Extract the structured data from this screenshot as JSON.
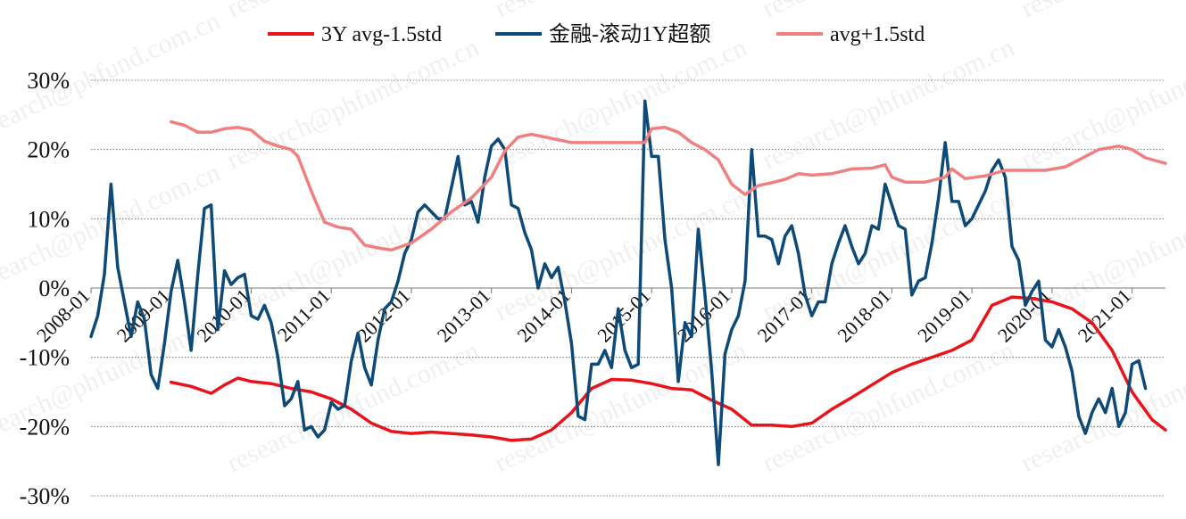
{
  "watermark": "research@phfund.com.cn",
  "chart_data": {
    "type": "line",
    "title": "",
    "xlabel": "",
    "ylabel": "",
    "ylim": [
      -0.3,
      0.3
    ],
    "y_ticks": [
      "30%",
      "20%",
      "10%",
      "0%",
      "-10%",
      "-20%",
      "-30%"
    ],
    "y_tick_values": [
      0.3,
      0.2,
      0.1,
      0.0,
      -0.1,
      -0.2,
      -0.3
    ],
    "grid": "horizontal dotted",
    "legend_position": "top",
    "x_ticks": [
      "2008-01",
      "2009-01",
      "2010-01",
      "2011-01",
      "2012-01",
      "2013-01",
      "2014-01",
      "2015-01",
      "2016-01",
      "2017-01",
      "2018-01",
      "2019-01",
      "2020-01",
      "2021-01"
    ],
    "x_range": [
      "2008-01",
      "2021-06"
    ],
    "series": [
      {
        "name": "3Y avg-1.5std",
        "color": "#e8141b",
        "points": [
          [
            "2009-01",
            -0.136
          ],
          [
            "2009-04",
            -0.142
          ],
          [
            "2009-07",
            -0.152
          ],
          [
            "2009-09",
            -0.14
          ],
          [
            "2009-11",
            -0.13
          ],
          [
            "2010-01",
            -0.135
          ],
          [
            "2010-04",
            -0.138
          ],
          [
            "2010-07",
            -0.145
          ],
          [
            "2010-10",
            -0.15
          ],
          [
            "2011-01",
            -0.16
          ],
          [
            "2011-04",
            -0.175
          ],
          [
            "2011-07",
            -0.195
          ],
          [
            "2011-10",
            -0.207
          ],
          [
            "2012-01",
            -0.21
          ],
          [
            "2012-04",
            -0.208
          ],
          [
            "2012-07",
            -0.21
          ],
          [
            "2012-10",
            -0.212
          ],
          [
            "2013-01",
            -0.215
          ],
          [
            "2013-04",
            -0.22
          ],
          [
            "2013-07",
            -0.218
          ],
          [
            "2013-10",
            -0.205
          ],
          [
            "2014-01",
            -0.18
          ],
          [
            "2014-04",
            -0.145
          ],
          [
            "2014-07",
            -0.132
          ],
          [
            "2014-10",
            -0.133
          ],
          [
            "2015-01",
            -0.138
          ],
          [
            "2015-04",
            -0.145
          ],
          [
            "2015-07",
            -0.147
          ],
          [
            "2015-10",
            -0.162
          ],
          [
            "2016-01",
            -0.175
          ],
          [
            "2016-04",
            -0.198
          ],
          [
            "2016-07",
            -0.198
          ],
          [
            "2016-10",
            -0.2
          ],
          [
            "2017-01",
            -0.195
          ],
          [
            "2017-04",
            -0.175
          ],
          [
            "2017-07",
            -0.158
          ],
          [
            "2017-10",
            -0.14
          ],
          [
            "2018-01",
            -0.122
          ],
          [
            "2018-04",
            -0.11
          ],
          [
            "2018-07",
            -0.1
          ],
          [
            "2018-10",
            -0.09
          ],
          [
            "2019-01",
            -0.075
          ],
          [
            "2019-04",
            -0.025
          ],
          [
            "2019-07",
            -0.013
          ],
          [
            "2019-10",
            -0.015
          ],
          [
            "2020-01",
            -0.02
          ],
          [
            "2020-04",
            -0.03
          ],
          [
            "2020-07",
            -0.05
          ],
          [
            "2020-10",
            -0.09
          ],
          [
            "2021-01",
            -0.15
          ],
          [
            "2021-04",
            -0.19
          ],
          [
            "2021-06",
            -0.205
          ]
        ]
      },
      {
        "name": "金融-滚动1Y超额",
        "color": "#0d4a78",
        "points": [
          [
            "2008-01",
            -0.07
          ],
          [
            "2008-02",
            -0.04
          ],
          [
            "2008-03",
            0.02
          ],
          [
            "2008-04",
            0.15
          ],
          [
            "2008-05",
            0.03
          ],
          [
            "2008-06",
            -0.02
          ],
          [
            "2008-07",
            -0.07
          ],
          [
            "2008-08",
            -0.02
          ],
          [
            "2008-09",
            -0.045
          ],
          [
            "2008-10",
            -0.125
          ],
          [
            "2008-11",
            -0.145
          ],
          [
            "2008-12",
            -0.08
          ],
          [
            "2009-01",
            -0.005
          ],
          [
            "2009-02",
            0.04
          ],
          [
            "2009-03",
            -0.02
          ],
          [
            "2009-04",
            -0.09
          ],
          [
            "2009-05",
            0.02
          ],
          [
            "2009-06",
            0.115
          ],
          [
            "2009-07",
            0.12
          ],
          [
            "2009-08",
            -0.06
          ],
          [
            "2009-09",
            0.025
          ],
          [
            "2009-10",
            0.005
          ],
          [
            "2009-11",
            0.015
          ],
          [
            "2009-12",
            0.02
          ],
          [
            "2010-01",
            -0.04
          ],
          [
            "2010-02",
            -0.045
          ],
          [
            "2010-03",
            -0.025
          ],
          [
            "2010-04",
            -0.05
          ],
          [
            "2010-05",
            -0.1
          ],
          [
            "2010-06",
            -0.17
          ],
          [
            "2010-07",
            -0.16
          ],
          [
            "2010-08",
            -0.135
          ],
          [
            "2010-09",
            -0.205
          ],
          [
            "2010-10",
            -0.2
          ],
          [
            "2010-11",
            -0.215
          ],
          [
            "2010-12",
            -0.205
          ],
          [
            "2011-01",
            -0.165
          ],
          [
            "2011-02",
            -0.175
          ],
          [
            "2011-03",
            -0.17
          ],
          [
            "2011-04",
            -0.105
          ],
          [
            "2011-05",
            -0.065
          ],
          [
            "2011-06",
            -0.115
          ],
          [
            "2011-07",
            -0.14
          ],
          [
            "2011-08",
            -0.075
          ],
          [
            "2011-09",
            -0.03
          ],
          [
            "2011-10",
            -0.02
          ],
          [
            "2011-11",
            0.01
          ],
          [
            "2011-12",
            0.05
          ],
          [
            "2012-01",
            0.07
          ],
          [
            "2012-02",
            0.11
          ],
          [
            "2012-03",
            0.12
          ],
          [
            "2012-04",
            0.11
          ],
          [
            "2012-05",
            0.1
          ],
          [
            "2012-06",
            0.1
          ],
          [
            "2012-07",
            0.145
          ],
          [
            "2012-08",
            0.19
          ],
          [
            "2012-09",
            0.12
          ],
          [
            "2012-10",
            0.125
          ],
          [
            "2012-11",
            0.095
          ],
          [
            "2012-12",
            0.16
          ],
          [
            "2013-01",
            0.205
          ],
          [
            "2013-02",
            0.215
          ],
          [
            "2013-03",
            0.2
          ],
          [
            "2013-04",
            0.12
          ],
          [
            "2013-05",
            0.115
          ],
          [
            "2013-06",
            0.08
          ],
          [
            "2013-07",
            0.055
          ],
          [
            "2013-08",
            0.0
          ],
          [
            "2013-09",
            0.035
          ],
          [
            "2013-10",
            0.015
          ],
          [
            "2013-11",
            0.03
          ],
          [
            "2013-12",
            -0.02
          ],
          [
            "2014-01",
            -0.08
          ],
          [
            "2014-02",
            -0.185
          ],
          [
            "2014-03",
            -0.19
          ],
          [
            "2014-04",
            -0.11
          ],
          [
            "2014-05",
            -0.11
          ],
          [
            "2014-06",
            -0.09
          ],
          [
            "2014-07",
            -0.115
          ],
          [
            "2014-08",
            -0.03
          ],
          [
            "2014-09",
            -0.09
          ],
          [
            "2014-10",
            -0.115
          ],
          [
            "2014-11",
            -0.11
          ],
          [
            "2014-12",
            0.27
          ],
          [
            "2015-01",
            0.19
          ],
          [
            "2015-02",
            0.19
          ],
          [
            "2015-03",
            0.07
          ],
          [
            "2015-04",
            0.0
          ],
          [
            "2015-05",
            -0.135
          ],
          [
            "2015-06",
            -0.05
          ],
          [
            "2015-07",
            -0.07
          ],
          [
            "2015-08",
            0.085
          ],
          [
            "2015-09",
            -0.01
          ],
          [
            "2015-10",
            -0.12
          ],
          [
            "2015-11",
            -0.255
          ],
          [
            "2015-12",
            -0.095
          ],
          [
            "2016-01",
            -0.06
          ],
          [
            "2016-02",
            -0.04
          ],
          [
            "2016-03",
            0.01
          ],
          [
            "2016-04",
            0.2
          ],
          [
            "2016-05",
            0.075
          ],
          [
            "2016-06",
            0.075
          ],
          [
            "2016-07",
            0.07
          ],
          [
            "2016-08",
            0.035
          ],
          [
            "2016-09",
            0.075
          ],
          [
            "2016-10",
            0.09
          ],
          [
            "2016-11",
            0.05
          ],
          [
            "2016-12",
            -0.01
          ],
          [
            "2017-01",
            -0.04
          ],
          [
            "2017-02",
            -0.02
          ],
          [
            "2017-03",
            -0.02
          ],
          [
            "2017-04",
            0.035
          ],
          [
            "2017-05",
            0.065
          ],
          [
            "2017-06",
            0.09
          ],
          [
            "2017-07",
            0.06
          ],
          [
            "2017-08",
            0.035
          ],
          [
            "2017-09",
            0.05
          ],
          [
            "2017-10",
            0.09
          ],
          [
            "2017-11",
            0.085
          ],
          [
            "2017-12",
            0.15
          ],
          [
            "2018-01",
            0.12
          ],
          [
            "2018-02",
            0.09
          ],
          [
            "2018-03",
            0.085
          ],
          [
            "2018-04",
            -0.01
          ],
          [
            "2018-05",
            0.01
          ],
          [
            "2018-06",
            0.015
          ],
          [
            "2018-07",
            0.065
          ],
          [
            "2018-08",
            0.13
          ],
          [
            "2018-09",
            0.21
          ],
          [
            "2018-10",
            0.125
          ],
          [
            "2018-11",
            0.125
          ],
          [
            "2018-12",
            0.09
          ],
          [
            "2019-01",
            0.1
          ],
          [
            "2019-02",
            0.12
          ],
          [
            "2019-03",
            0.14
          ],
          [
            "2019-04",
            0.17
          ],
          [
            "2019-05",
            0.185
          ],
          [
            "2019-06",
            0.16
          ],
          [
            "2019-07",
            0.06
          ],
          [
            "2019-08",
            0.04
          ],
          [
            "2019-09",
            -0.025
          ],
          [
            "2019-10",
            -0.005
          ],
          [
            "2019-11",
            0.01
          ],
          [
            "2019-12",
            -0.075
          ],
          [
            "2020-01",
            -0.085
          ],
          [
            "2020-02",
            -0.06
          ],
          [
            "2020-03",
            -0.085
          ],
          [
            "2020-04",
            -0.12
          ],
          [
            "2020-05",
            -0.185
          ],
          [
            "2020-06",
            -0.21
          ],
          [
            "2020-07",
            -0.18
          ],
          [
            "2020-08",
            -0.16
          ],
          [
            "2020-09",
            -0.18
          ],
          [
            "2020-10",
            -0.145
          ],
          [
            "2020-11",
            -0.2
          ],
          [
            "2020-12",
            -0.18
          ],
          [
            "2021-01",
            -0.11
          ],
          [
            "2021-02",
            -0.105
          ],
          [
            "2021-03",
            -0.145
          ]
        ]
      },
      {
        "name": "avg+1.5std",
        "color": "#f08080",
        "points": [
          [
            "2009-01",
            0.24
          ],
          [
            "2009-03",
            0.235
          ],
          [
            "2009-05",
            0.225
          ],
          [
            "2009-07",
            0.225
          ],
          [
            "2009-09",
            0.23
          ],
          [
            "2009-11",
            0.232
          ],
          [
            "2010-01",
            0.228
          ],
          [
            "2010-03",
            0.212
          ],
          [
            "2010-05",
            0.205
          ],
          [
            "2010-07",
            0.2
          ],
          [
            "2010-08",
            0.19
          ],
          [
            "2010-10",
            0.14
          ],
          [
            "2010-12",
            0.095
          ],
          [
            "2011-02",
            0.088
          ],
          [
            "2011-04",
            0.085
          ],
          [
            "2011-06",
            0.062
          ],
          [
            "2011-08",
            0.058
          ],
          [
            "2011-10",
            0.055
          ],
          [
            "2012-01",
            0.065
          ],
          [
            "2012-04",
            0.085
          ],
          [
            "2012-07",
            0.11
          ],
          [
            "2012-10",
            0.13
          ],
          [
            "2013-01",
            0.16
          ],
          [
            "2013-03",
            0.198
          ],
          [
            "2013-05",
            0.218
          ],
          [
            "2013-07",
            0.222
          ],
          [
            "2013-10",
            0.216
          ],
          [
            "2014-01",
            0.21
          ],
          [
            "2014-04",
            0.21
          ],
          [
            "2014-07",
            0.21
          ],
          [
            "2014-10",
            0.21
          ],
          [
            "2014-12",
            0.21
          ],
          [
            "2015-01",
            0.23
          ],
          [
            "2015-03",
            0.232
          ],
          [
            "2015-05",
            0.225
          ],
          [
            "2015-07",
            0.21
          ],
          [
            "2015-09",
            0.2
          ],
          [
            "2015-11",
            0.185
          ],
          [
            "2016-01",
            0.15
          ],
          [
            "2016-03",
            0.135
          ],
          [
            "2016-05",
            0.148
          ],
          [
            "2016-07",
            0.152
          ],
          [
            "2016-09",
            0.157
          ],
          [
            "2016-11",
            0.165
          ],
          [
            "2017-01",
            0.163
          ],
          [
            "2017-04",
            0.165
          ],
          [
            "2017-07",
            0.172
          ],
          [
            "2017-10",
            0.173
          ],
          [
            "2017-12",
            0.178
          ],
          [
            "2018-01",
            0.16
          ],
          [
            "2018-03",
            0.153
          ],
          [
            "2018-06",
            0.153
          ],
          [
            "2018-09",
            0.16
          ],
          [
            "2018-10",
            0.172
          ],
          [
            "2018-12",
            0.158
          ],
          [
            "2019-03",
            0.162
          ],
          [
            "2019-06",
            0.17
          ],
          [
            "2019-09",
            0.17
          ],
          [
            "2019-12",
            0.17
          ],
          [
            "2020-03",
            0.175
          ],
          [
            "2020-06",
            0.19
          ],
          [
            "2020-08",
            0.2
          ],
          [
            "2020-11",
            0.205
          ],
          [
            "2021-01",
            0.2
          ],
          [
            "2021-03",
            0.188
          ],
          [
            "2021-06",
            0.18
          ]
        ]
      }
    ]
  }
}
